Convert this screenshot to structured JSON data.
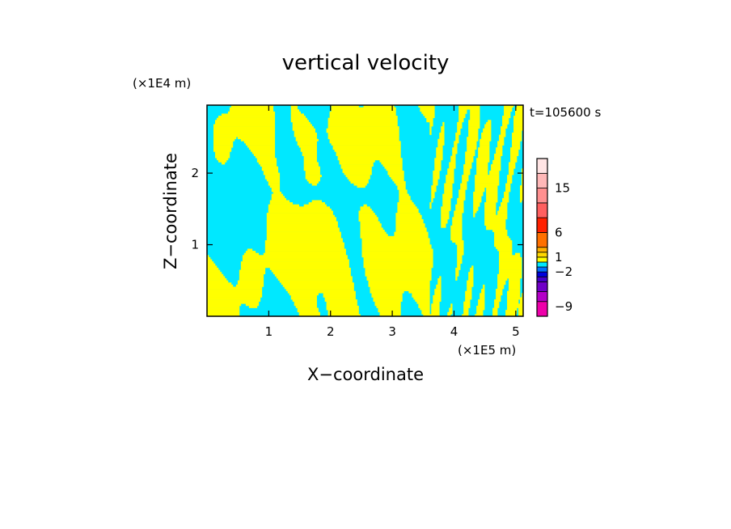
{
  "chart_data": {
    "type": "heatmap",
    "title": "vertical velocity",
    "xlabel": "X−coordinate",
    "ylabel": "Z−coordinate",
    "x_unit_label": "(×1E5 m)",
    "y_unit_label": "(×1E4 m)",
    "time_label": "t=105600 s",
    "xlim": [
      0,
      5.12
    ],
    "ylim": [
      0,
      2.95
    ],
    "x_ticks": [
      1,
      2,
      3,
      4,
      5
    ],
    "y_ticks": [
      1,
      2
    ],
    "field_colors": {
      "negative": "#00e8ff",
      "positive": "#ffff00"
    },
    "colorbar": {
      "range": [
        -11,
        21
      ],
      "levels": [
        {
          "from": -11,
          "to": -8,
          "color": "#ee00aa"
        },
        {
          "from": -8,
          "to": -6,
          "color": "#b400c8"
        },
        {
          "from": -6,
          "to": -4,
          "color": "#7000c8"
        },
        {
          "from": -4,
          "to": -3,
          "color": "#4400cc"
        },
        {
          "from": -3,
          "to": -2,
          "color": "#0000dd"
        },
        {
          "from": -2,
          "to": -1,
          "color": "#0070ff"
        },
        {
          "from": -1,
          "to": 0,
          "color": "#00e8ff"
        },
        {
          "from": 0,
          "to": 1,
          "color": "#ffff00"
        },
        {
          "from": 1,
          "to": 2,
          "color": "#ffd700"
        },
        {
          "from": 2,
          "to": 3,
          "color": "#ffb000"
        },
        {
          "from": 3,
          "to": 6,
          "color": "#ff7000"
        },
        {
          "from": 6,
          "to": 9,
          "color": "#ff2000"
        },
        {
          "from": 9,
          "to": 12,
          "color": "#ff6060"
        },
        {
          "from": 12,
          "to": 15,
          "color": "#ff9090"
        },
        {
          "from": 15,
          "to": 18,
          "color": "#ffb8b8"
        },
        {
          "from": 18,
          "to": 21,
          "color": "#ffe4e4"
        }
      ],
      "tick_labels": [
        {
          "value": 15,
          "label": "15"
        },
        {
          "value": 6,
          "label": "6"
        },
        {
          "value": 1,
          "label": "1"
        },
        {
          "value": -2,
          "label": "−2"
        },
        {
          "value": -9,
          "label": "−9"
        }
      ]
    }
  }
}
